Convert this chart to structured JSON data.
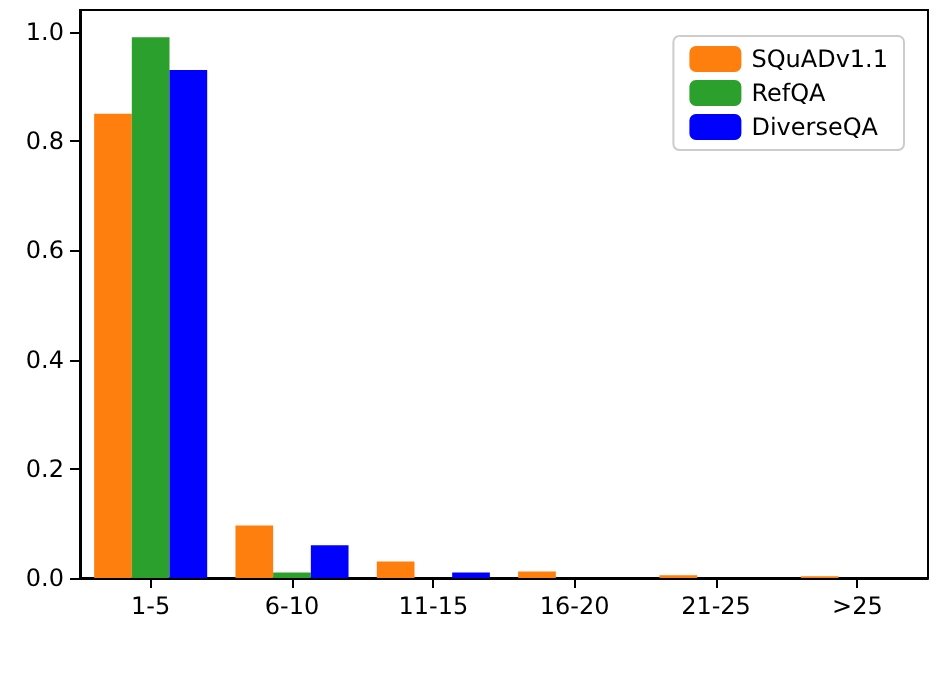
{
  "chart_data": {
    "type": "bar",
    "categories": [
      "1-5",
      "6-10",
      "11-15",
      "16-20",
      "21-25",
      ">25"
    ],
    "series": [
      {
        "name": "SQuADv1.1",
        "color": "#ff7f0e",
        "values": [
          0.85,
          0.096,
          0.03,
          0.012,
          0.005,
          0.003
        ]
      },
      {
        "name": "RefQA",
        "color": "#2ca02c",
        "values": [
          0.99,
          0.01,
          0,
          0,
          0,
          0
        ]
      },
      {
        "name": "DiverseQA",
        "color": "#0000ff",
        "values": [
          0.93,
          0.06,
          0.01,
          0,
          0,
          0
        ]
      }
    ],
    "ylim": [
      0,
      1.04
    ],
    "yticks": [
      {
        "value": 0,
        "label": "0.0"
      },
      0.2,
      0.4,
      0.6,
      0.8,
      {
        "value": 1,
        "label": "1.0"
      }
    ],
    "grid": false,
    "legend": "top right"
  }
}
